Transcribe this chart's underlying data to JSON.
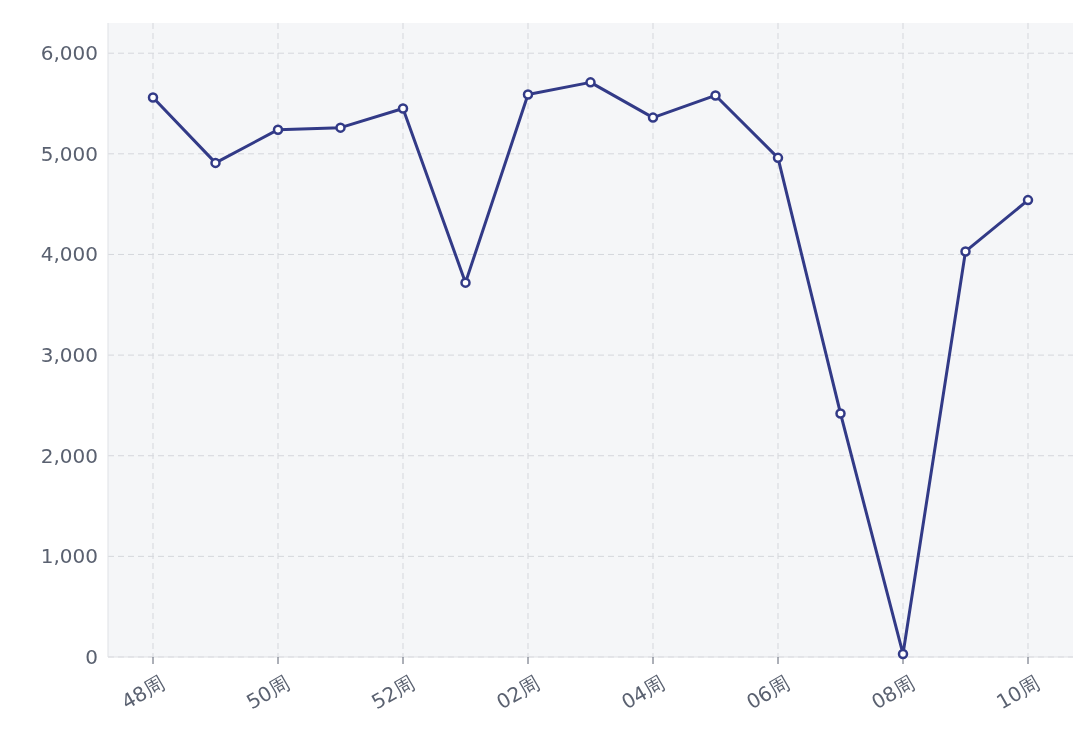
{
  "chart_data": {
    "type": "line",
    "categories": [
      "48周",
      null,
      "50周",
      null,
      "52周",
      null,
      "02周",
      null,
      "04周",
      null,
      "06周",
      null,
      "08周",
      null,
      "10周"
    ],
    "series": [
      {
        "color": "#323a87",
        "values": [
          5560,
          4910,
          5240,
          5260,
          5450,
          3720,
          5590,
          5710,
          5360,
          5580,
          4960,
          2420,
          30,
          4030,
          4540
        ]
      }
    ],
    "ylim": [
      0,
      6300
    ],
    "yticks": [
      {
        "value": 0,
        "label": "0"
      },
      {
        "value": 1000,
        "label": "1,000"
      },
      {
        "value": 2000,
        "label": "2,000"
      },
      {
        "value": 3000,
        "label": "3,000"
      },
      {
        "value": 4000,
        "label": "4,000"
      },
      {
        "value": 5000,
        "label": "5,000"
      },
      {
        "value": 6000,
        "label": "6,000"
      }
    ],
    "grid": true,
    "marker": "circle",
    "line_style": "solid"
  }
}
